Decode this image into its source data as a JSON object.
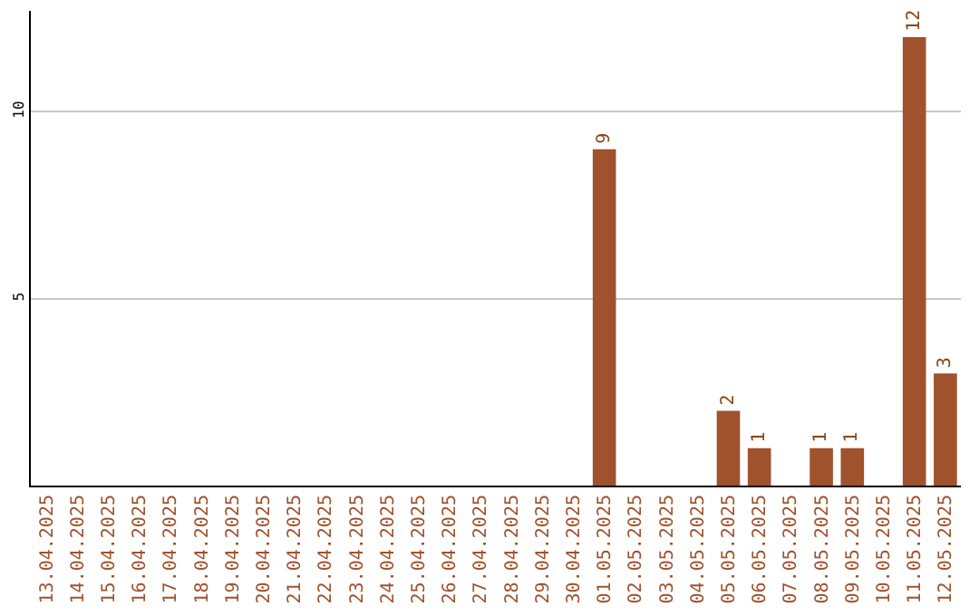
{
  "chart_data": {
    "type": "bar",
    "categories": [
      "13.04.2025",
      "14.04.2025",
      "15.04.2025",
      "16.04.2025",
      "17.04.2025",
      "18.04.2025",
      "19.04.2025",
      "20.04.2025",
      "21.04.2025",
      "22.04.2025",
      "23.04.2025",
      "24.04.2025",
      "25.04.2025",
      "26.04.2025",
      "27.04.2025",
      "28.04.2025",
      "29.04.2025",
      "30.04.2025",
      "01.05.2025",
      "02.05.2025",
      "03.05.2025",
      "04.05.2025",
      "05.05.2025",
      "06.05.2025",
      "07.05.2025",
      "08.05.2025",
      "09.05.2025",
      "10.05.2025",
      "11.05.2025",
      "12.05.2025"
    ],
    "values": [
      0,
      0,
      0,
      0,
      0,
      0,
      0,
      0,
      0,
      0,
      0,
      0,
      0,
      0,
      0,
      0,
      0,
      0,
      9,
      0,
      0,
      0,
      2,
      1,
      0,
      1,
      1,
      0,
      12,
      3
    ],
    "value_labels": [
      null,
      null,
      null,
      null,
      null,
      null,
      null,
      null,
      null,
      null,
      null,
      null,
      null,
      null,
      null,
      null,
      null,
      null,
      "9",
      null,
      null,
      null,
      "2",
      "1",
      null,
      "1",
      "1",
      null,
      "12",
      "3"
    ],
    "color": "#a0522d",
    "ylim": [
      0,
      12.7
    ],
    "yticks": [
      5,
      10
    ],
    "grid": "y"
  }
}
